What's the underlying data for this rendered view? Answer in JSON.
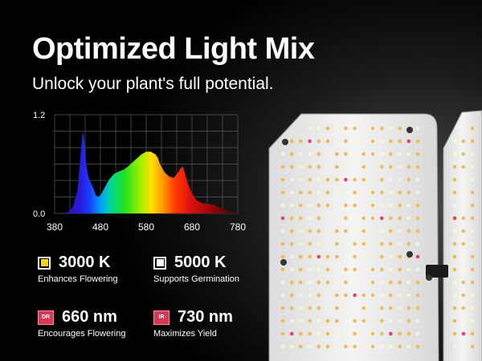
{
  "header": {
    "title": "Optimized Light Mix",
    "subtitle": "Unlock your plant's full potential."
  },
  "legend": [
    {
      "value": "3000 K",
      "description": "Enhances Flowering",
      "swatch_color": "#ffd21a",
      "badge": ""
    },
    {
      "value": "5000 K",
      "description": "Supports Germination",
      "swatch_color": "#ffffff",
      "badge": ""
    },
    {
      "value": "660 nm",
      "description": "Encourages Flowering",
      "swatch_color": "#d23a58",
      "badge": "DR"
    },
    {
      "value": "730 nm",
      "description": "Maximizes Yield",
      "swatch_color": "#d23a58",
      "badge": "IR"
    }
  ],
  "chart_data": {
    "type": "area",
    "title": "",
    "xlabel": "",
    "ylabel": "",
    "xlim": [
      380,
      780
    ],
    "ylim": [
      0,
      1.2
    ],
    "x_ticks": [
      "380",
      "480",
      "580",
      "680",
      "780"
    ],
    "y_ticks": [
      "0.0",
      "1.2"
    ],
    "grid": true,
    "fill": "visible-spectrum-gradient",
    "x": [
      380,
      400,
      410,
      420,
      430,
      435,
      440,
      442,
      444,
      446,
      448,
      450,
      455,
      460,
      465,
      470,
      475,
      480,
      490,
      500,
      510,
      520,
      530,
      540,
      550,
      560,
      570,
      580,
      590,
      600,
      605,
      610,
      620,
      630,
      640,
      650,
      655,
      660,
      665,
      670,
      680,
      690,
      700,
      710,
      720,
      730,
      740,
      750,
      760,
      770,
      780
    ],
    "y": [
      0.0,
      0.0,
      0.02,
      0.08,
      0.28,
      0.6,
      0.93,
      0.99,
      0.93,
      0.8,
      0.65,
      0.55,
      0.42,
      0.36,
      0.3,
      0.22,
      0.2,
      0.22,
      0.32,
      0.42,
      0.48,
      0.51,
      0.53,
      0.57,
      0.62,
      0.67,
      0.72,
      0.75,
      0.75,
      0.72,
      0.68,
      0.6,
      0.5,
      0.45,
      0.43,
      0.5,
      0.55,
      0.57,
      0.48,
      0.38,
      0.24,
      0.16,
      0.13,
      0.12,
      0.11,
      0.1,
      0.07,
      0.05,
      0.03,
      0.01,
      0.0
    ]
  }
}
